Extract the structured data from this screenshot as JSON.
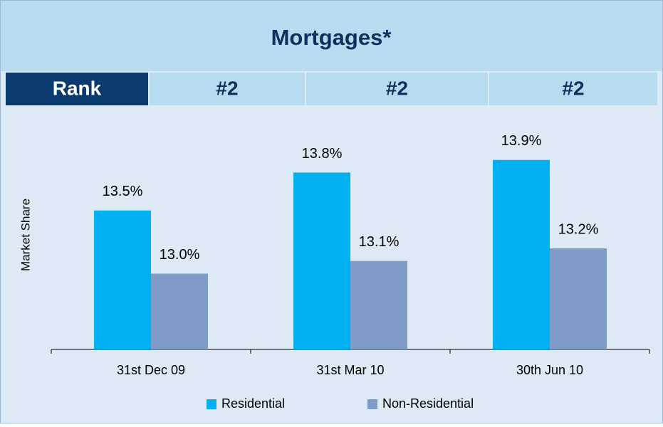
{
  "header": {
    "title": "Mortgages*",
    "rank_label": "Rank",
    "ranks": [
      "#2",
      "#2",
      "#2"
    ]
  },
  "chart_data": {
    "type": "bar",
    "ylabel": "Market Share",
    "categories": [
      "31st Dec 09",
      "31st Mar 10",
      "30th Jun 10"
    ],
    "series": [
      {
        "name": "Residential",
        "color": "#00b0f0",
        "values": [
          13.5,
          13.8,
          13.9
        ],
        "value_labels": [
          "13.5%",
          "13.8%",
          "13.9%"
        ]
      },
      {
        "name": "Non-Residential",
        "color": "#7f9bc7",
        "values": [
          13.0,
          13.1,
          13.2
        ],
        "value_labels": [
          "13.0%",
          "13.1%",
          "13.2%"
        ]
      }
    ],
    "ylim": [
      12.4,
      14.0
    ],
    "grid": false,
    "legend": "bottom"
  }
}
